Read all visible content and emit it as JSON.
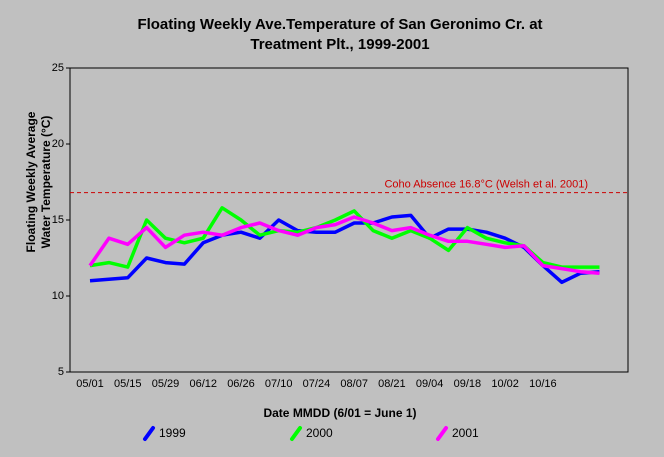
{
  "chart_data": {
    "type": "line",
    "title": [
      "Floating Weekly Ave.Temperature of San Geronimo Cr. at",
      "Treatment Plt., 1999-2001"
    ],
    "x_label": "Date MMDD (6/01 = June 1)",
    "y_label": [
      "Floating Weekly Average",
      "Water Temperature (°C)"
    ],
    "categories": [
      "05/01",
      null,
      "05/15",
      null,
      "05/29",
      null,
      "06/12",
      null,
      "06/26",
      null,
      "07/10",
      null,
      "07/24",
      null,
      "08/07",
      null,
      "08/21",
      null,
      "09/04",
      null,
      "09/18",
      null,
      "10/02",
      null,
      "10/16",
      null,
      null,
      null
    ],
    "series": [
      {
        "name": "1999",
        "color": "#0000ff",
        "values": [
          11.0,
          11.1,
          11.2,
          12.5,
          12.2,
          12.1,
          13.5,
          14.0,
          14.2,
          13.8,
          15.0,
          14.3,
          14.2,
          14.2,
          14.8,
          14.8,
          15.2,
          15.3,
          13.8,
          14.4,
          14.4,
          14.2,
          13.8,
          13.2,
          12.0,
          10.9,
          11.5,
          11.6
        ]
      },
      {
        "name": "2000",
        "color": "#00ff00",
        "values": [
          12.0,
          12.2,
          11.9,
          15.0,
          13.8,
          13.5,
          13.8,
          15.8,
          15.0,
          14.0,
          14.3,
          14.2,
          14.5,
          15.0,
          15.6,
          14.3,
          13.8,
          14.3,
          13.8,
          13.0,
          14.5,
          13.8,
          13.5,
          13.3,
          12.2,
          11.9,
          11.9,
          11.9
        ]
      },
      {
        "name": "2001",
        "color": "#ff00ff",
        "values": [
          12.0,
          13.8,
          13.4,
          14.5,
          13.2,
          14.0,
          14.2,
          14.0,
          14.5,
          14.8,
          14.3,
          14.0,
          14.5,
          14.7,
          15.2,
          14.8,
          14.3,
          14.5,
          14.0,
          13.6,
          13.6,
          13.4,
          13.2,
          13.3,
          12.0,
          11.8,
          11.6,
          11.5
        ]
      }
    ],
    "reference_line": {
      "value": 16.8,
      "label": "Coho Absence 16.8°C (Welsh et al. 2001)",
      "color": "#cc0000"
    },
    "ylim": [
      5,
      25
    ],
    "yticks": [
      5,
      10,
      15,
      20,
      25
    ]
  }
}
